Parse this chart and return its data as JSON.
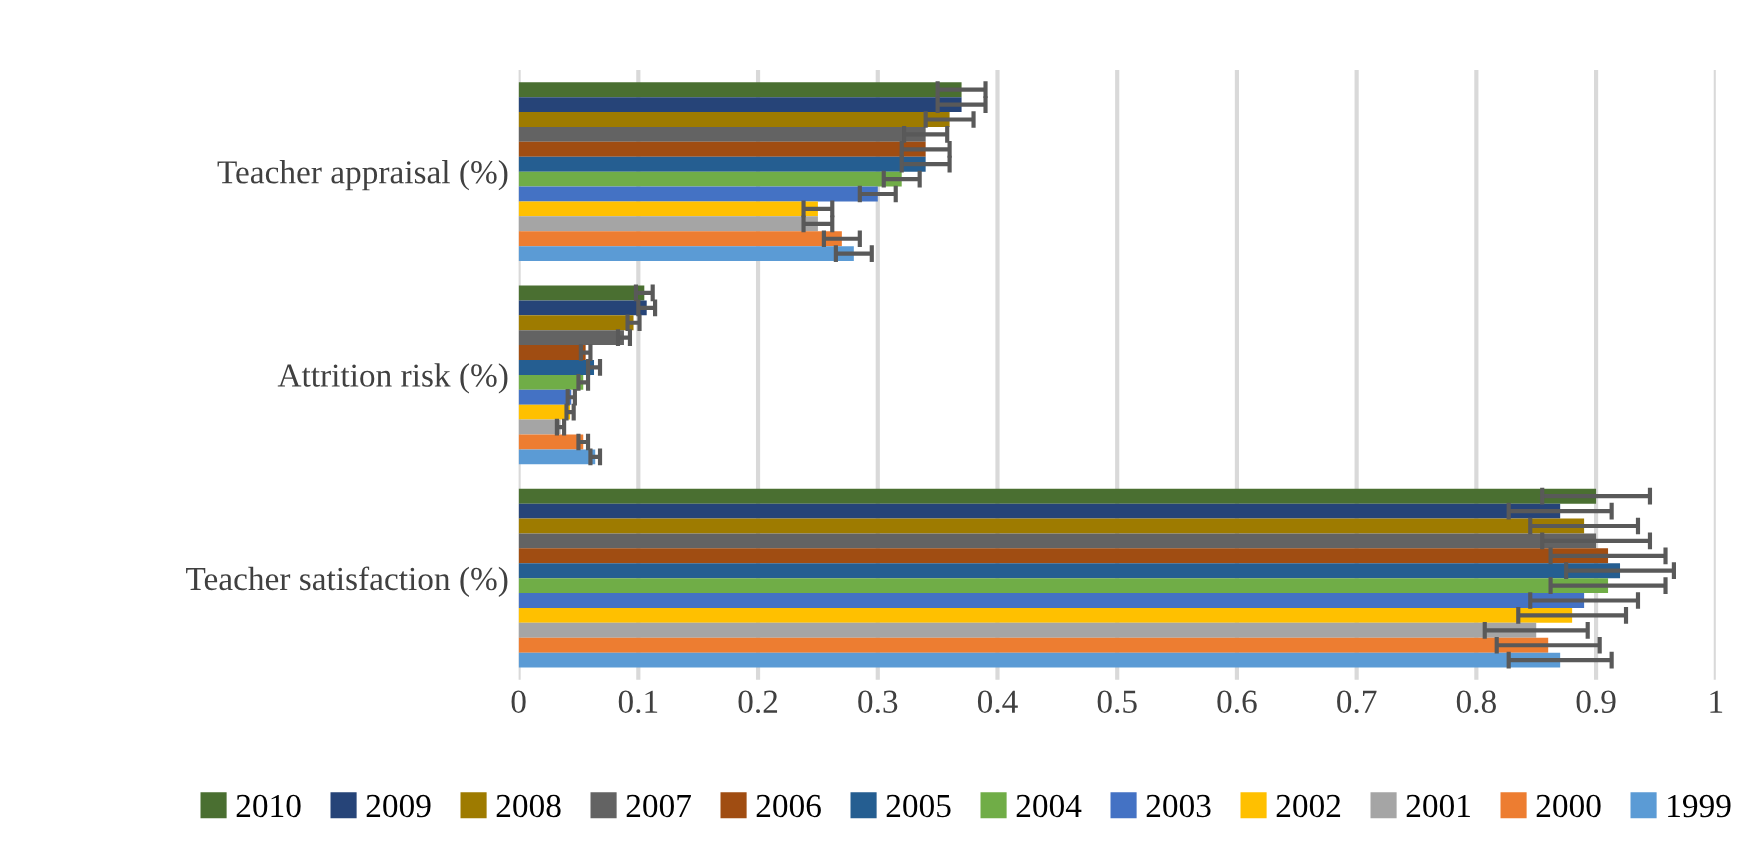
{
  "chart_data": {
    "type": "bar",
    "orientation": "horizontal",
    "categories": [
      "Teacher appraisal (%)",
      "Attrition risk (%)",
      "Teacher satisfaction (%)"
    ],
    "series": [
      {
        "name": "2010",
        "color": "#4a6f31",
        "values": [
          0.37,
          0.105,
          0.9
        ],
        "errors": [
          0.02,
          0.007,
          0.045
        ]
      },
      {
        "name": "2009",
        "color": "#264478",
        "values": [
          0.37,
          0.107,
          0.87
        ],
        "errors": [
          0.02,
          0.007,
          0.043
        ]
      },
      {
        "name": "2008",
        "color": "#9e7b00",
        "values": [
          0.36,
          0.096,
          0.89
        ],
        "errors": [
          0.02,
          0.005,
          0.045
        ]
      },
      {
        "name": "2007",
        "color": "#636363",
        "values": [
          0.34,
          0.088,
          0.9
        ],
        "errors": [
          0.018,
          0.005,
          0.045
        ]
      },
      {
        "name": "2006",
        "color": "#a04d12",
        "values": [
          0.34,
          0.056,
          0.91
        ],
        "errors": [
          0.02,
          0.004,
          0.048
        ]
      },
      {
        "name": "2005",
        "color": "#255e91",
        "values": [
          0.34,
          0.063,
          0.92
        ],
        "errors": [
          0.02,
          0.005,
          0.045
        ]
      },
      {
        "name": "2004",
        "color": "#70ad47",
        "values": [
          0.32,
          0.054,
          0.91
        ],
        "errors": [
          0.015,
          0.004,
          0.048
        ]
      },
      {
        "name": "2003",
        "color": "#4472c4",
        "values": [
          0.3,
          0.044,
          0.89
        ],
        "errors": [
          0.015,
          0.003,
          0.045
        ]
      },
      {
        "name": "2002",
        "color": "#ffc000",
        "values": [
          0.25,
          0.043,
          0.88
        ],
        "errors": [
          0.012,
          0.003,
          0.045
        ]
      },
      {
        "name": "2001",
        "color": "#a5a5a5",
        "values": [
          0.25,
          0.035,
          0.85
        ],
        "errors": [
          0.012,
          0.003,
          0.043
        ]
      },
      {
        "name": "2000",
        "color": "#ed7d31",
        "values": [
          0.27,
          0.054,
          0.86
        ],
        "errors": [
          0.015,
          0.004,
          0.043
        ]
      },
      {
        "name": "1999",
        "color": "#5b9bd5",
        "values": [
          0.28,
          0.064,
          0.87
        ],
        "errors": [
          0.015,
          0.004,
          0.043
        ]
      }
    ],
    "xlim": [
      0,
      1
    ],
    "xticks": [
      0,
      0.1,
      0.2,
      0.3,
      0.4,
      0.5,
      0.6,
      0.7,
      0.8,
      0.9,
      1
    ],
    "grid": "x",
    "legend": "bottom"
  }
}
